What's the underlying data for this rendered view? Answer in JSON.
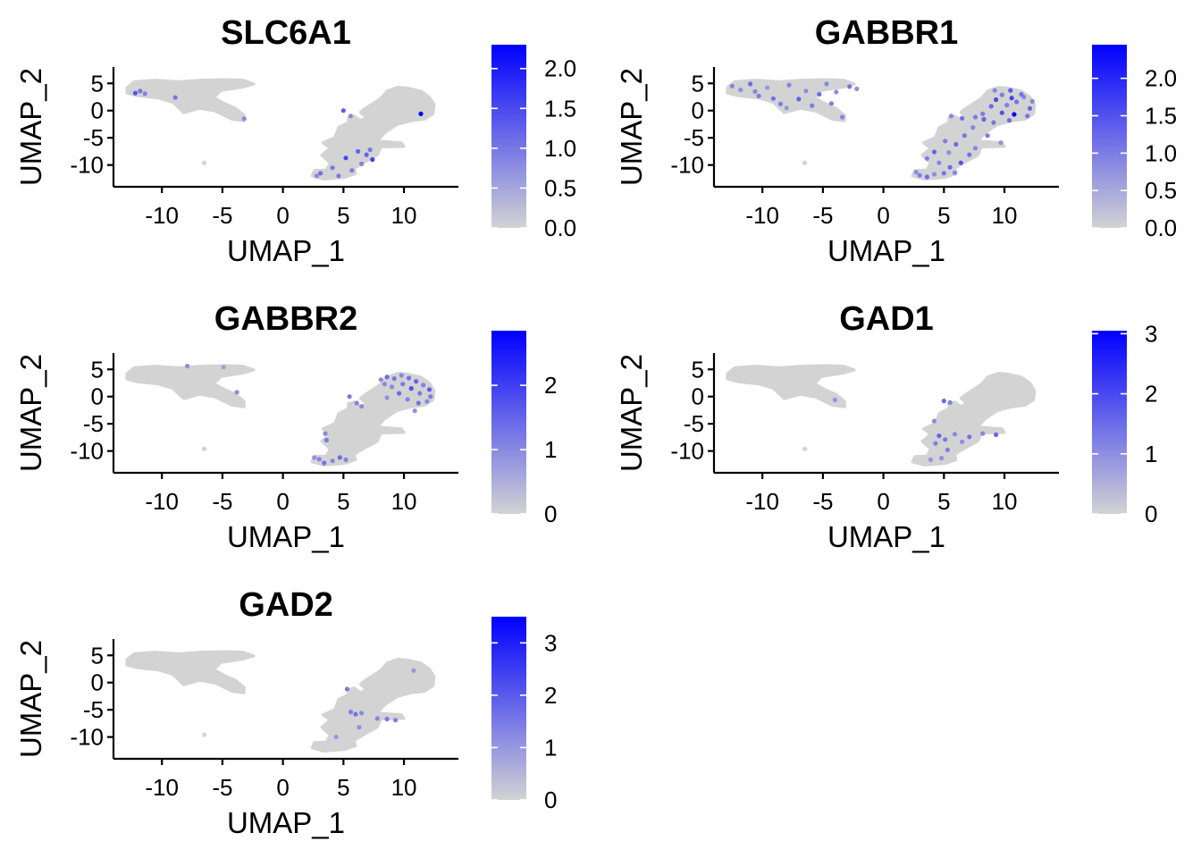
{
  "chart_data": [
    {
      "type": "scatter",
      "title": "SLC6A1",
      "xlabel": "UMAP_1",
      "ylabel": "UMAP_2",
      "xticks": [
        -10,
        -5,
        0,
        5,
        10
      ],
      "xtick_labels": [
        "-10",
        "-5",
        "0",
        "5",
        "10"
      ],
      "yticks": [
        5,
        0,
        -5,
        -10
      ],
      "ytick_labels": [
        "5",
        "0",
        "-5",
        "-10"
      ],
      "xlim": [
        -14,
        14.5
      ],
      "ylim": [
        -14,
        8
      ],
      "colorbar": {
        "min": 0,
        "max": 2.3,
        "ticks": [
          0,
          0.5,
          1,
          1.5,
          2
        ],
        "tick_labels": [
          "0.0",
          "0.5",
          "1.0",
          "1.5",
          "2.0"
        ],
        "low_color": "#d3d3d3",
        "high_color": "#0000ff"
      },
      "expressing_cells": [
        [
          -12.2,
          3.2,
          1.4
        ],
        [
          -11.8,
          3.6,
          1.0
        ],
        [
          -11.4,
          3.1,
          0.9
        ],
        [
          -8.9,
          2.4,
          1.0
        ],
        [
          -3.2,
          -1.5,
          0.8
        ],
        [
          5.0,
          0.0,
          1.3
        ],
        [
          5.6,
          -1.0,
          0.8
        ],
        [
          6.2,
          -7.5,
          1.2
        ],
        [
          6.5,
          -9.8,
          0.9
        ],
        [
          5.2,
          -8.7,
          1.5
        ],
        [
          4.1,
          -10.5,
          1.0
        ],
        [
          5.7,
          -11.0,
          0.9
        ],
        [
          3.1,
          -11.5,
          1.1
        ],
        [
          2.8,
          -12.0,
          0.8
        ],
        [
          7.2,
          -7.2,
          1.0
        ],
        [
          7.4,
          -9.0,
          1.6
        ],
        [
          11.4,
          -0.6,
          2.3
        ],
        [
          6.9,
          -8.1,
          1.2
        ],
        [
          4.6,
          -12.0,
          1.0
        ]
      ]
    },
    {
      "type": "scatter",
      "title": "GABBR1",
      "xlabel": "UMAP_1",
      "ylabel": "UMAP_2",
      "xticks": [
        -10,
        -5,
        0,
        5,
        10
      ],
      "xtick_labels": [
        "-10",
        "-5",
        "0",
        "5",
        "10"
      ],
      "yticks": [
        5,
        0,
        -5,
        -10
      ],
      "ytick_labels": [
        "5",
        "0",
        "-5",
        "-10"
      ],
      "xlim": [
        -14,
        14.5
      ],
      "ylim": [
        -14,
        8
      ],
      "colorbar": {
        "min": 0,
        "max": 2.45,
        "ticks": [
          0,
          0.5,
          1,
          1.5,
          2
        ],
        "tick_labels": [
          "0.0",
          "0.5",
          "1.0",
          "1.5",
          "2.0"
        ],
        "low_color": "#d3d3d3",
        "high_color": "#0000ff"
      },
      "expressing_cells": [
        [
          -12.5,
          4.5,
          0.9
        ],
        [
          -11.8,
          3.8,
          0.8
        ],
        [
          -11.0,
          4.9,
          1.2
        ],
        [
          -10.3,
          2.7,
          1.0
        ],
        [
          -9.6,
          4.2,
          0.7
        ],
        [
          -9.1,
          2.2,
          1.1
        ],
        [
          -8.5,
          1.2,
          1.0
        ],
        [
          -7.8,
          4.7,
          0.9
        ],
        [
          -7.0,
          2.1,
          1.3
        ],
        [
          -6.4,
          3.6,
          0.8
        ],
        [
          -5.9,
          0.9,
          1.0
        ],
        [
          -5.3,
          3.0,
          1.2
        ],
        [
          -4.7,
          4.9,
          0.9
        ],
        [
          -4.3,
          1.3,
          1.0
        ],
        [
          -3.9,
          3.4,
          0.8
        ],
        [
          -3.4,
          -1.2,
          0.9
        ],
        [
          -2.8,
          4.4,
          1.1
        ],
        [
          -2.2,
          4.0,
          0.8
        ],
        [
          -8.0,
          0.5,
          0.7
        ],
        [
          -10.6,
          3.5,
          0.9
        ],
        [
          9.8,
          2.9,
          1.0
        ],
        [
          10.5,
          3.7,
          1.4
        ],
        [
          11.0,
          1.6,
          1.1
        ],
        [
          11.6,
          2.5,
          0.9
        ],
        [
          12.1,
          0.4,
          1.3
        ],
        [
          10.8,
          -0.7,
          2.4
        ],
        [
          9.8,
          -0.4,
          1.5
        ],
        [
          10.2,
          1.0,
          1.0
        ],
        [
          8.9,
          0.8,
          1.2
        ],
        [
          9.3,
          2.0,
          1.6
        ],
        [
          11.9,
          -1.0,
          1.1
        ],
        [
          12.3,
          1.7,
          0.9
        ],
        [
          8.3,
          -1.6,
          1.3
        ],
        [
          7.6,
          -1.2,
          1.0
        ],
        [
          7.4,
          -3.1,
          0.9
        ],
        [
          6.7,
          -4.6,
          1.1
        ],
        [
          6.0,
          -6.2,
          1.2
        ],
        [
          5.4,
          -7.7,
          0.8
        ],
        [
          5.1,
          -5.6,
          1.0
        ],
        [
          4.2,
          -7.6,
          1.3
        ],
        [
          3.6,
          -8.8,
          1.0
        ],
        [
          4.6,
          -9.6,
          0.9
        ],
        [
          5.5,
          -10.4,
          1.2
        ],
        [
          6.4,
          -9.6,
          1.5
        ],
        [
          7.1,
          -8.1,
          1.1
        ],
        [
          7.6,
          -6.9,
          0.9
        ],
        [
          3.0,
          -11.9,
          1.0
        ],
        [
          3.6,
          -12.2,
          1.2
        ],
        [
          4.2,
          -11.7,
          0.8
        ],
        [
          5.0,
          -11.5,
          1.1
        ],
        [
          5.9,
          -11.4,
          0.9
        ],
        [
          2.7,
          -11.3,
          0.8
        ],
        [
          6.5,
          -1.4,
          1.2
        ],
        [
          5.6,
          -1.0,
          0.9
        ],
        [
          8.2,
          -0.6,
          1.0
        ],
        [
          9.1,
          -2.2,
          1.1
        ],
        [
          8.6,
          -4.6,
          1.0
        ],
        [
          9.7,
          -5.9,
          0.8
        ],
        [
          10.6,
          2.3,
          1.7
        ],
        [
          11.4,
          3.0,
          1.1
        ],
        [
          10.4,
          -1.8,
          1.2
        ],
        [
          9.2,
          3.7,
          0.9
        ]
      ]
    },
    {
      "type": "scatter",
      "title": "GABBR2",
      "xlabel": "UMAP_1",
      "ylabel": "UMAP_2",
      "xticks": [
        -10,
        -5,
        0,
        5,
        10
      ],
      "xtick_labels": [
        "-10",
        "-5",
        "0",
        "5",
        "10"
      ],
      "yticks": [
        5,
        0,
        -5,
        -10
      ],
      "ytick_labels": [
        "5",
        "0",
        "-5",
        "-10"
      ],
      "xlim": [
        -14,
        14.5
      ],
      "ylim": [
        -14,
        8
      ],
      "colorbar": {
        "min": 0,
        "max": 2.85,
        "ticks": [
          0,
          1,
          2
        ],
        "tick_labels": [
          "0",
          "1",
          "2"
        ],
        "low_color": "#d3d3d3",
        "high_color": "#0000ff"
      },
      "expressing_cells": [
        [
          -7.9,
          5.6,
          0.9
        ],
        [
          -3.8,
          0.8,
          1.0
        ],
        [
          -4.9,
          5.4,
          0.7
        ],
        [
          8.1,
          3.1,
          1.0
        ],
        [
          8.6,
          3.6,
          1.4
        ],
        [
          9.2,
          3.3,
          1.2
        ],
        [
          9.8,
          3.9,
          1.0
        ],
        [
          10.4,
          3.4,
          1.3
        ],
        [
          11.0,
          2.8,
          1.5
        ],
        [
          11.6,
          2.1,
          1.1
        ],
        [
          12.1,
          1.3,
          1.6
        ],
        [
          12.2,
          0.0,
          1.2
        ],
        [
          11.9,
          -0.9,
          1.0
        ],
        [
          11.2,
          -1.2,
          1.3
        ],
        [
          10.3,
          -0.5,
          1.1
        ],
        [
          9.6,
          0.6,
          1.4
        ],
        [
          9.0,
          1.8,
          1.0
        ],
        [
          10.6,
          1.5,
          1.8
        ],
        [
          11.3,
          0.6,
          1.2
        ],
        [
          8.6,
          -0.2,
          0.9
        ],
        [
          9.9,
          2.3,
          1.2
        ],
        [
          8.4,
          2.3,
          1.0
        ],
        [
          6.1,
          -1.2,
          1.1
        ],
        [
          6.5,
          -1.8,
          1.0
        ],
        [
          5.5,
          0.0,
          1.2
        ],
        [
          3.5,
          -6.8,
          1.0
        ],
        [
          3.6,
          -8.0,
          1.2
        ],
        [
          3.0,
          -11.5,
          1.1
        ],
        [
          3.4,
          -12.2,
          1.3
        ],
        [
          4.1,
          -11.8,
          1.0
        ],
        [
          4.7,
          -11.2,
          1.4
        ],
        [
          5.2,
          -11.6,
          1.1
        ],
        [
          2.6,
          -11.2,
          0.9
        ],
        [
          10.9,
          -2.6,
          0.9
        ]
      ]
    },
    {
      "type": "scatter",
      "title": "GAD1",
      "xlabel": "UMAP_1",
      "ylabel": "UMAP_2",
      "xticks": [
        -10,
        -5,
        0,
        5,
        10
      ],
      "xtick_labels": [
        "-10",
        "-5",
        "0",
        "5",
        "10"
      ],
      "yticks": [
        5,
        0,
        -5,
        -10
      ],
      "ytick_labels": [
        "5",
        "0",
        "-5",
        "-10"
      ],
      "xlim": [
        -14,
        14.5
      ],
      "ylim": [
        -14,
        8
      ],
      "colorbar": {
        "min": 0,
        "max": 3.05,
        "ticks": [
          0,
          1,
          2,
          3
        ],
        "tick_labels": [
          "0",
          "1",
          "2",
          "3"
        ],
        "low_color": "#d3d3d3",
        "high_color": "#0000ff"
      },
      "expressing_cells": [
        [
          -4.0,
          -0.6,
          0.9
        ],
        [
          5.0,
          -0.8,
          1.5
        ],
        [
          5.5,
          -1.1,
          1.2
        ],
        [
          4.2,
          -4.5,
          1.0
        ],
        [
          4.6,
          -7.2,
          1.6
        ],
        [
          5.1,
          -7.9,
          1.3
        ],
        [
          5.9,
          -6.9,
          1.1
        ],
        [
          4.3,
          -8.6,
          1.2
        ],
        [
          6.5,
          -8.3,
          1.0
        ],
        [
          7.1,
          -7.4,
          1.4
        ],
        [
          8.2,
          -6.8,
          1.1
        ],
        [
          9.3,
          -7.0,
          1.6
        ],
        [
          5.3,
          -9.8,
          1.2
        ],
        [
          3.9,
          -11.6,
          0.9
        ],
        [
          4.8,
          -11.3,
          1.0
        ]
      ]
    },
    {
      "type": "scatter",
      "title": "GAD2",
      "xlabel": "UMAP_1",
      "ylabel": "UMAP_2",
      "xticks": [
        -10,
        -5,
        0,
        5,
        10
      ],
      "xtick_labels": [
        "-10",
        "-5",
        "0",
        "5",
        "10"
      ],
      "yticks": [
        5,
        0,
        -5,
        -10
      ],
      "ytick_labels": [
        "5",
        "0",
        "-5",
        "-10"
      ],
      "xlim": [
        -14,
        14.5
      ],
      "ylim": [
        -14,
        8
      ],
      "colorbar": {
        "min": 0,
        "max": 3.5,
        "ticks": [
          0,
          1,
          2,
          3
        ],
        "tick_labels": [
          "0",
          "1",
          "2",
          "3"
        ],
        "low_color": "#d3d3d3",
        "high_color": "#0000ff"
      },
      "expressing_cells": [
        [
          5.3,
          -1.2,
          1.5
        ],
        [
          10.8,
          2.2,
          1.0
        ],
        [
          5.6,
          -5.4,
          1.4
        ],
        [
          6.0,
          -5.8,
          1.6
        ],
        [
          6.5,
          -5.6,
          1.2
        ],
        [
          7.8,
          -6.6,
          1.3
        ],
        [
          8.6,
          -6.7,
          1.5
        ],
        [
          9.3,
          -6.9,
          1.4
        ],
        [
          4.4,
          -10.0,
          1.0
        ],
        [
          6.3,
          -8.2,
          1.1
        ]
      ]
    }
  ]
}
